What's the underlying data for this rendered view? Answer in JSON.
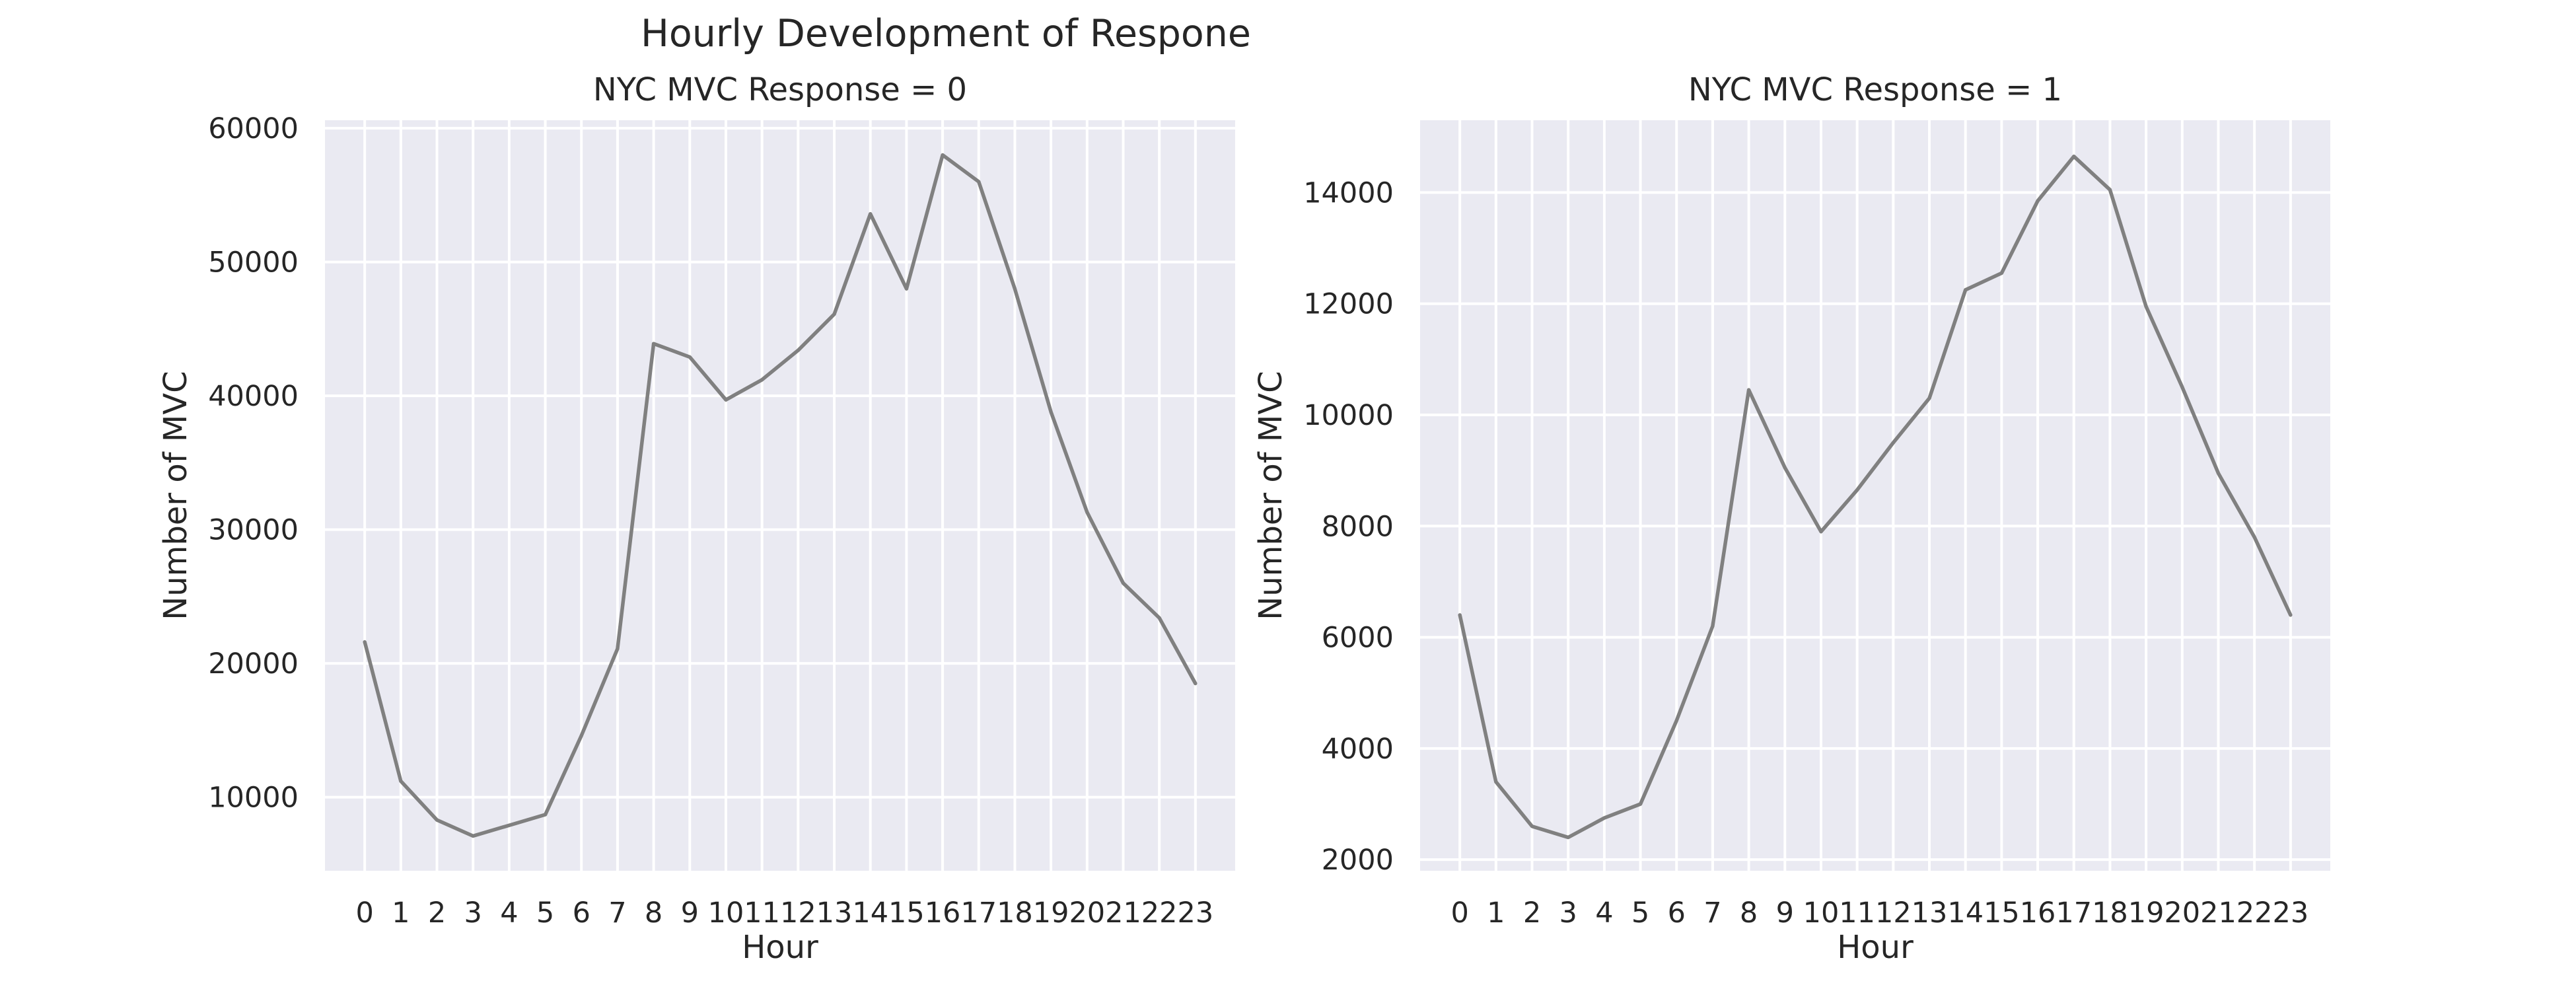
{
  "figure": {
    "title": "Hourly Development of Respone"
  },
  "chart_data": [
    {
      "type": "line",
      "title": "NYC MVC Response = 0",
      "xlabel": "Hour",
      "ylabel": "Number of MVC",
      "x": [
        0,
        1,
        2,
        3,
        4,
        5,
        6,
        7,
        8,
        9,
        10,
        11,
        12,
        13,
        14,
        15,
        16,
        17,
        18,
        19,
        20,
        21,
        22,
        23
      ],
      "x_ticks": [
        "0",
        "1",
        "2",
        "3",
        "4",
        "5",
        "6",
        "7",
        "8",
        "9",
        "10",
        "11",
        "12",
        "13",
        "14",
        "15",
        "16",
        "17",
        "18",
        "19",
        "20",
        "21",
        "22",
        "23"
      ],
      "series": [
        {
          "color": "#808080",
          "values": [
            21600,
            11200,
            8300,
            7100,
            7900,
            8700,
            14600,
            21100,
            43900,
            42900,
            39700,
            41200,
            43400,
            46100,
            53600,
            48000,
            58000,
            56000,
            48000,
            38800,
            31300,
            26000,
            23400,
            18500
          ]
        }
      ],
      "ylim": [
        4500,
        60600
      ],
      "y_ticks": [
        10000,
        20000,
        30000,
        40000,
        50000,
        60000
      ],
      "grid": true,
      "background": "#eaeaf2"
    },
    {
      "type": "line",
      "title": "NYC MVC Response = 1",
      "xlabel": "Hour",
      "ylabel": "Number of MVC",
      "x": [
        0,
        1,
        2,
        3,
        4,
        5,
        6,
        7,
        8,
        9,
        10,
        11,
        12,
        13,
        14,
        15,
        16,
        17,
        18,
        19,
        20,
        21,
        22,
        23
      ],
      "x_ticks": [
        "0",
        "1",
        "2",
        "3",
        "4",
        "5",
        "6",
        "7",
        "8",
        "9",
        "10",
        "11",
        "12",
        "13",
        "14",
        "15",
        "16",
        "17",
        "18",
        "19",
        "20",
        "21",
        "22",
        "23"
      ],
      "series": [
        {
          "color": "#808080",
          "values": [
            6400,
            3400,
            2600,
            2400,
            2750,
            3000,
            4500,
            6200,
            10450,
            9050,
            7900,
            8650,
            9500,
            10300,
            12250,
            12550,
            13850,
            14650,
            14050,
            11950,
            10500,
            8950,
            7800,
            6400
          ]
        }
      ],
      "ylim": [
        1800,
        15300
      ],
      "y_ticks": [
        2000,
        4000,
        6000,
        8000,
        10000,
        12000,
        14000
      ],
      "grid": true,
      "background": "#eaeaf2"
    }
  ]
}
